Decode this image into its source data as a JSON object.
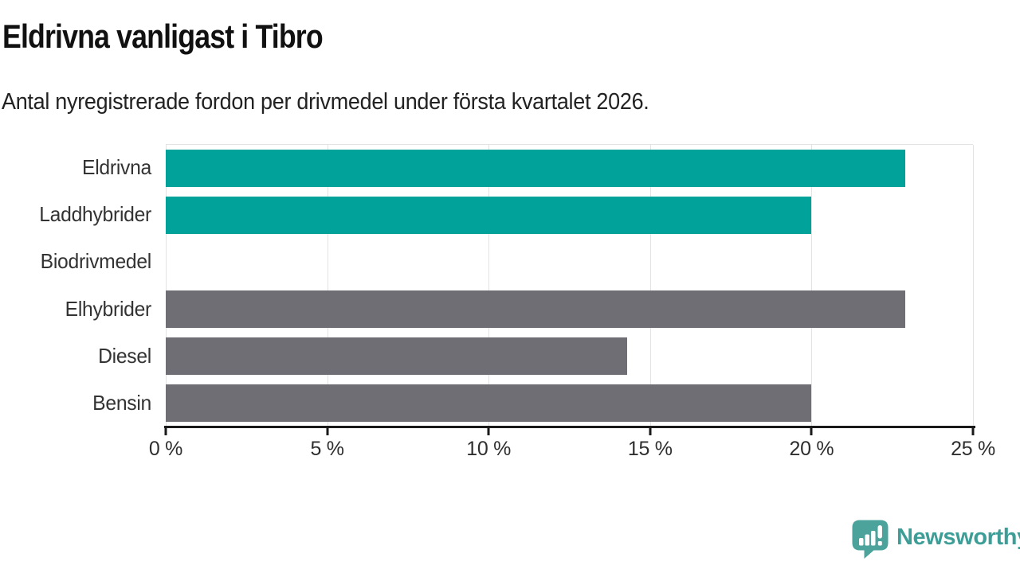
{
  "header": {
    "title": "Eldrivna vanligast i Tibro",
    "subtitle": "Antal nyregistrerade fordon per drivmedel under första kvartalet 2026."
  },
  "chart_data": {
    "type": "bar",
    "orientation": "horizontal",
    "title": "Eldrivna vanligast i Tibro",
    "subtitle": "Antal nyregistrerade fordon per drivmedel under första kvartalet 2026.",
    "categories": [
      "Eldrivna",
      "Laddhybrider",
      "Biodrivmedel",
      "Elhybrider",
      "Diesel",
      "Bensin"
    ],
    "values": [
      22.9,
      20.0,
      0.0,
      22.9,
      14.3,
      20.0
    ],
    "unit": "%",
    "xlim": [
      0,
      25
    ],
    "x_ticks": [
      0,
      5,
      10,
      15,
      20,
      25
    ],
    "x_tick_labels": [
      "0 %",
      "5 %",
      "10 %",
      "15 %",
      "20 %",
      "25 %"
    ],
    "grid": "vertical-gridlines-on",
    "legend": "none",
    "series_colors": {
      "highlight": "#00a29a",
      "default": "#6e6e74"
    },
    "bar_color_keys": [
      "highlight",
      "highlight",
      "highlight",
      "default",
      "default",
      "default"
    ]
  },
  "branding": {
    "logo_text": "Newsworthy",
    "logo_text_color": "#3d9e97",
    "logo_icon_color": "#4ba39c",
    "logo_icon": "newsworthy-speech-bubble-chart-icon"
  },
  "colors": {
    "title": "#111111",
    "subtitle": "#222222",
    "axis_labels": "#2e2e2e",
    "axis_line": "#1a1a1a",
    "gridline": "#e3e3e3",
    "background": "#ffffff"
  }
}
